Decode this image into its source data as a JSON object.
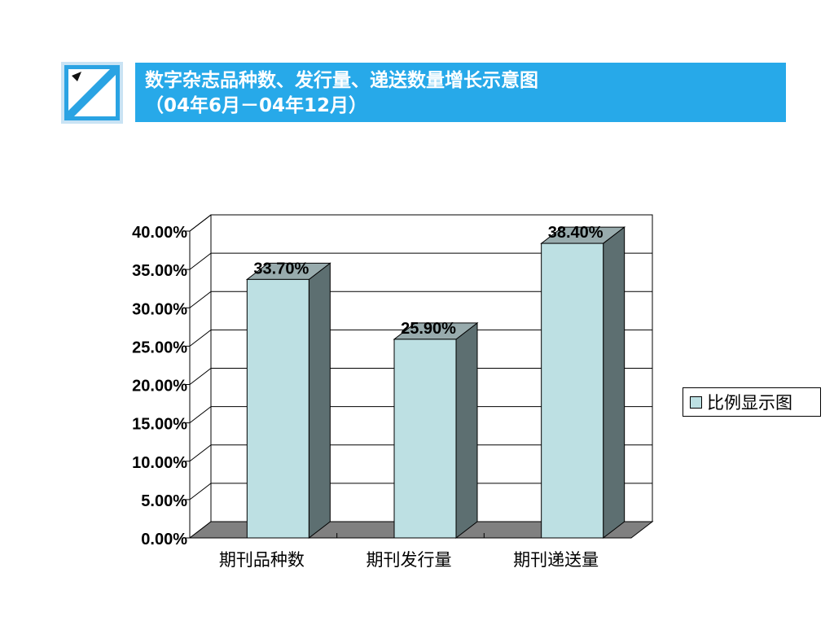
{
  "header": {
    "title_line1": "数字杂志品种数、发行量、递送数量增长示意图",
    "title_line2": "（04年6月－04年12月）",
    "bar_color": "#27a9e9"
  },
  "logo": {
    "icon": "diagonal-slash-logo-icon"
  },
  "chart_data": {
    "type": "bar",
    "categories": [
      "期刊品种数",
      "期刊发行量",
      "期刊递送量"
    ],
    "series": [
      {
        "name": "比例显示图",
        "values": [
          33.7,
          25.9,
          38.4
        ]
      }
    ],
    "data_labels": [
      "33.70%",
      "25.90%",
      "38.40%"
    ],
    "y_tick_labels": [
      "0.00%",
      "5.00%",
      "10.00%",
      "15.00%",
      "20.00%",
      "25.00%",
      "30.00%",
      "35.00%",
      "40.00%"
    ],
    "ylim": [
      0,
      40
    ],
    "grid": true,
    "legend_position": "right",
    "bar_color": "#bde0e3",
    "bar_side_color": "#5d6f71",
    "bar_top_color": "#98abad",
    "floor_color": "#808080"
  }
}
